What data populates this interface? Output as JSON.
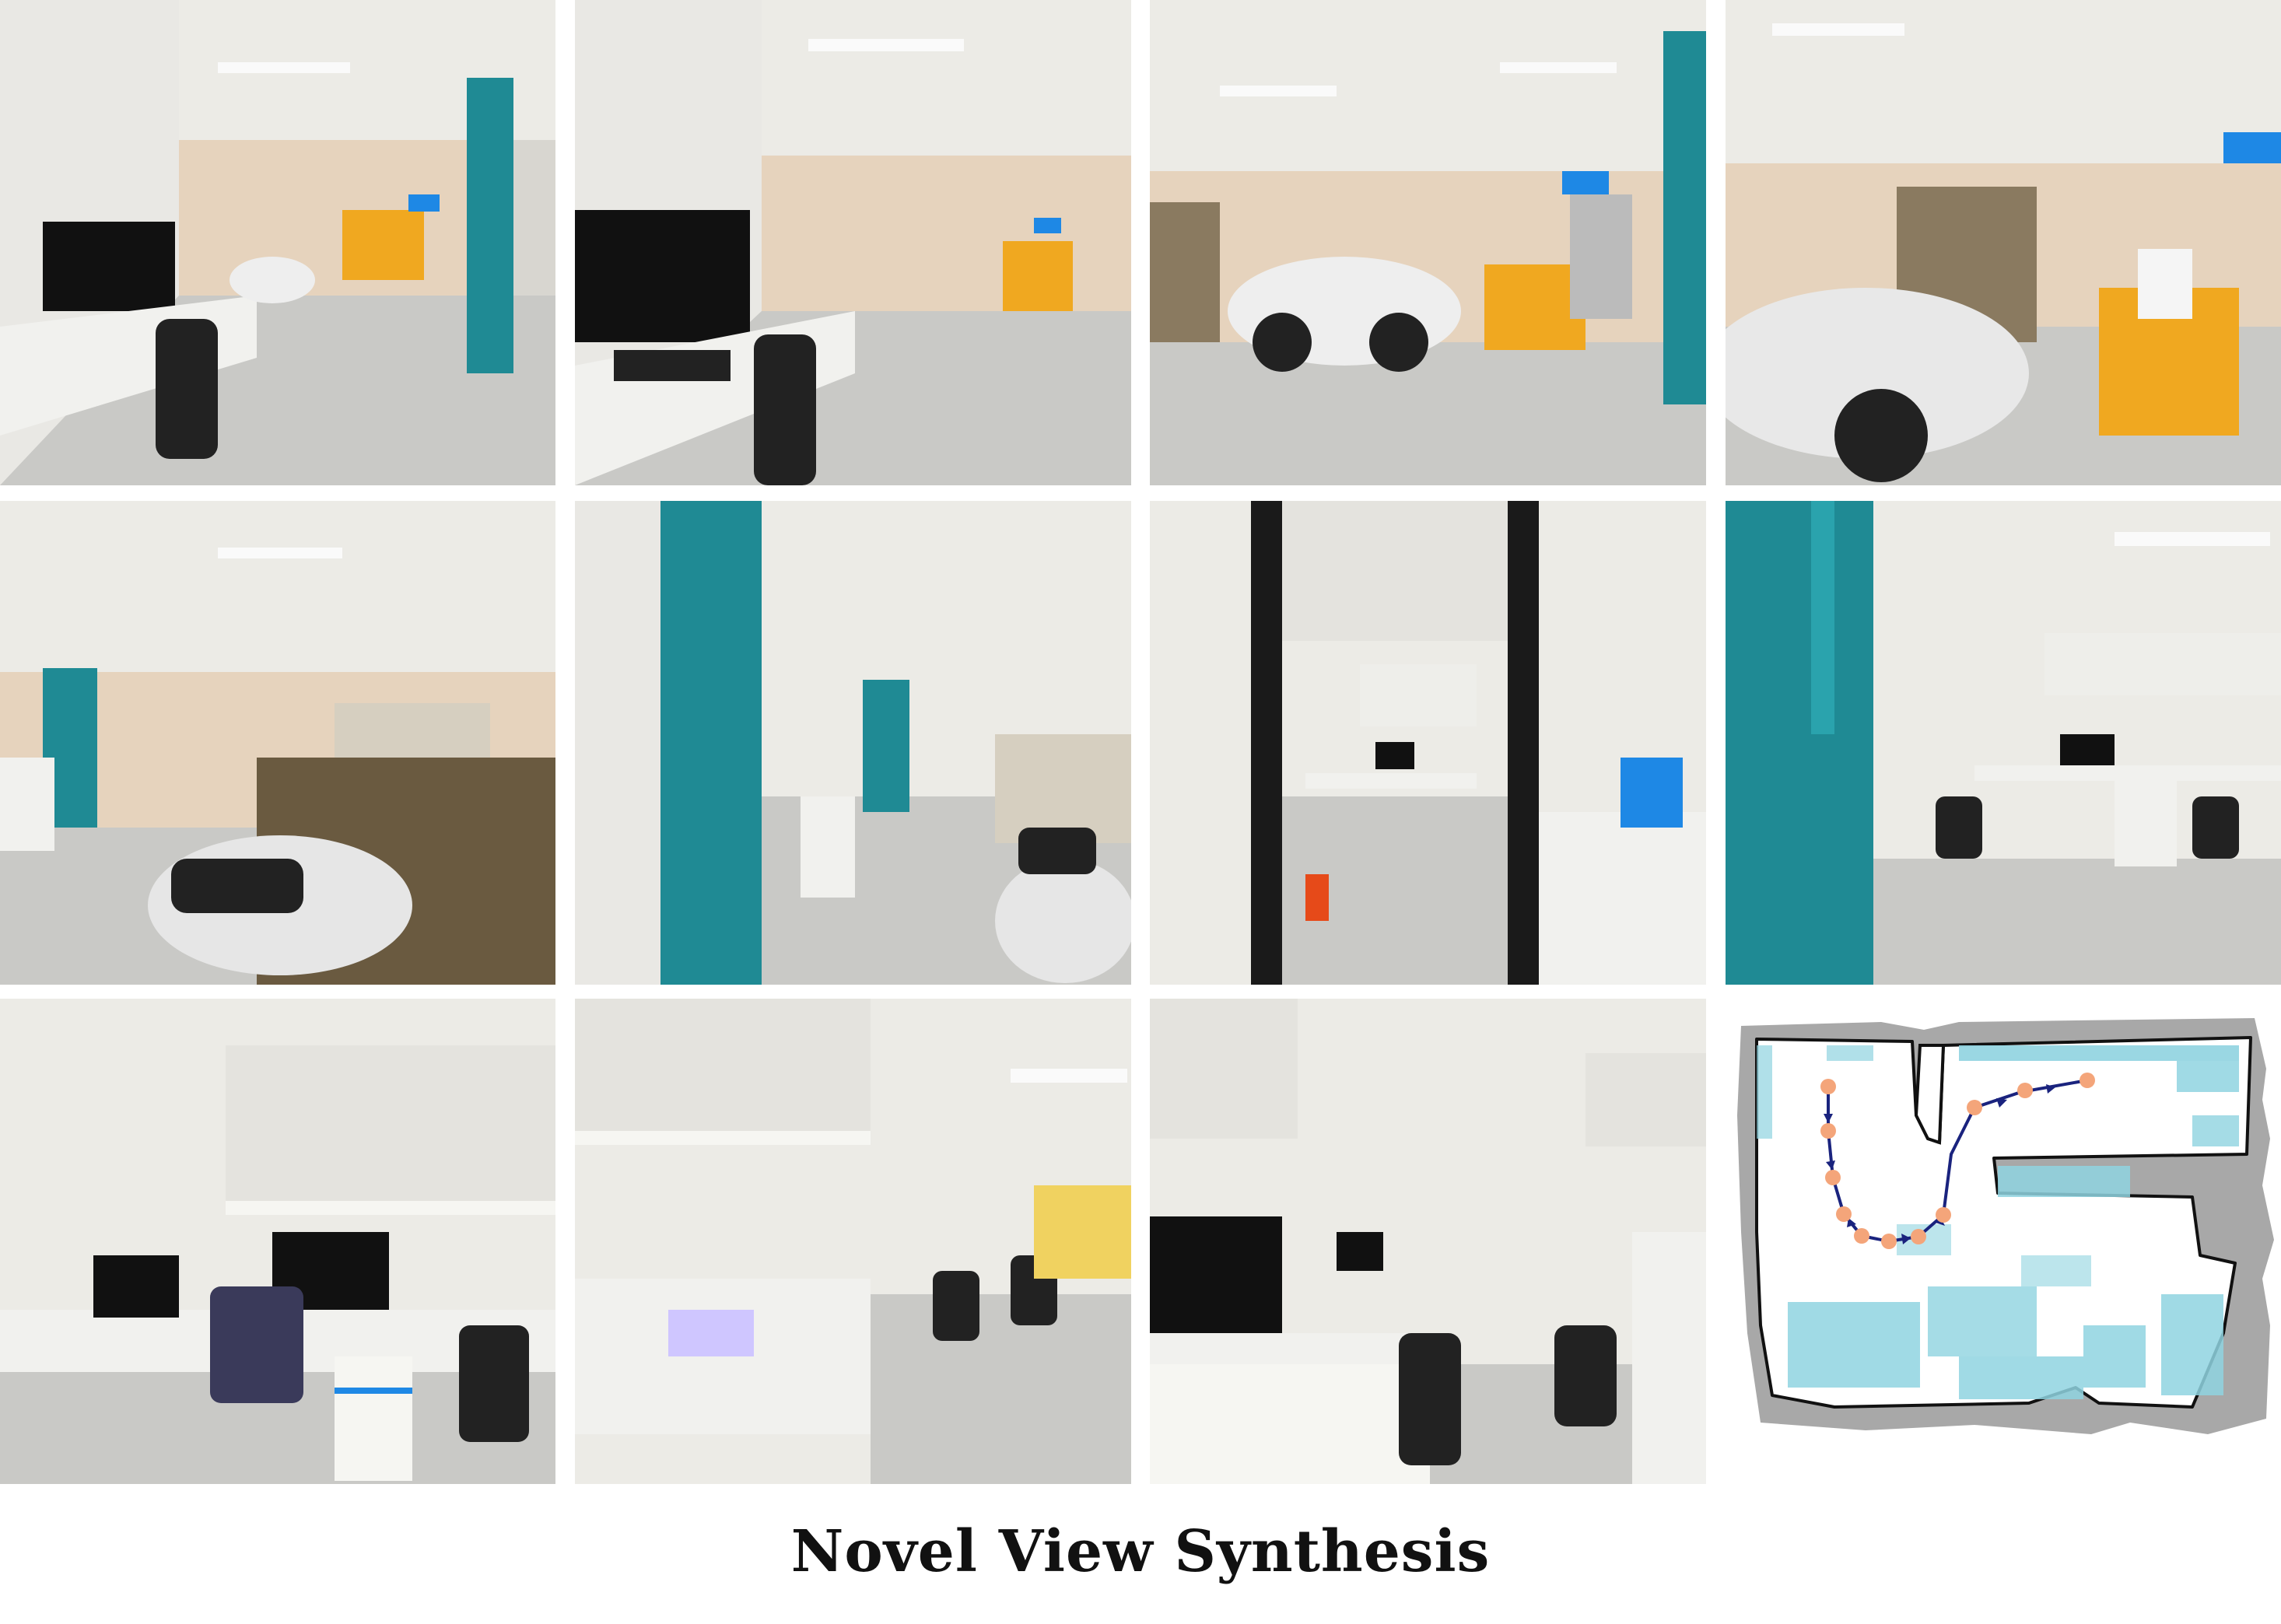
{
  "caption": "Novel View Synthesis",
  "views": [
    {
      "id": "view-1",
      "scene": "lab-desk-imac-motorcycle"
    },
    {
      "id": "view-2",
      "scene": "lab-desk-imac-closeup"
    },
    {
      "id": "view-3",
      "scene": "lab-motorcycle-yellow-cart"
    },
    {
      "id": "view-4",
      "scene": "lab-motorcycle-closeup"
    },
    {
      "id": "view-5",
      "scene": "lab-motorcycle-machine"
    },
    {
      "id": "view-6",
      "scene": "lab-doorway-corridor"
    },
    {
      "id": "view-7",
      "scene": "lab-doorway-office"
    },
    {
      "id": "view-8",
      "scene": "office-teal-door"
    },
    {
      "id": "view-9",
      "scene": "office-shelves-desk"
    },
    {
      "id": "view-10",
      "scene": "office-corner-chairs"
    },
    {
      "id": "view-11",
      "scene": "office-desk-chair"
    }
  ],
  "trajectory_map": {
    "colors": {
      "occupancy": "#a8a8a8",
      "boundary": "#111111",
      "pointcloud": "#8fd3e0",
      "waypoint": "#f4a57a",
      "arrow": "#1a237e"
    }
  }
}
